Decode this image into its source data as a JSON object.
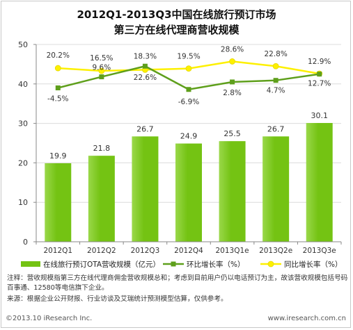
{
  "title_line1": "2012Q1-2013Q3中国在线旅行预订市场",
  "title_line2": "第三方在线代理商营收规模",
  "colors": {
    "bar": "#74c313",
    "bar_light": "#9ad84a",
    "qoq_line": "#5e9f1b",
    "yoy_line": "#fdf000",
    "yoy_marker": "#fdf000"
  },
  "chart_data": {
    "type": "bar",
    "categories": [
      "2012Q1",
      "2012Q2",
      "2012Q3",
      "2012Q4",
      "2013Q1e",
      "2013Q2e",
      "2013Q3e"
    ],
    "ylim": [
      0,
      50
    ],
    "yticks": [
      0,
      10,
      20,
      30,
      40,
      50
    ],
    "series": [
      {
        "name": "在线旅行预订OTA营收规模（亿元）",
        "kind": "bar",
        "values": [
          19.9,
          21.8,
          26.7,
          24.9,
          25.5,
          26.7,
          30.1
        ],
        "labels": [
          "19.9",
          "21.8",
          "26.7",
          "24.9",
          "25.5",
          "26.7",
          "30.1"
        ]
      },
      {
        "name": "环比增长率（%）",
        "kind": "line",
        "values": [
          -4.5,
          9.6,
          22.6,
          -6.9,
          2.8,
          4.7,
          12.7
        ],
        "labels": [
          "-4.5%",
          "9.6%",
          "22.6%",
          "-6.9%",
          "2.8%",
          "4.7%",
          "12.7%"
        ]
      },
      {
        "name": "同比增长率（%）",
        "kind": "line",
        "values": [
          20.2,
          16.5,
          18.3,
          19.5,
          28.6,
          22.8,
          12.9
        ],
        "labels": [
          "20.2%",
          "16.5%",
          "18.3%",
          "19.5%",
          "28.6%",
          "22.8%",
          "12.9%"
        ]
      }
    ],
    "line_plot_positions": {
      "qoq": [
        39.0,
        41.8,
        44.5,
        38.6,
        40.5,
        40.9,
        42.5
      ],
      "yoy": [
        44.0,
        43.3,
        43.6,
        43.9,
        45.7,
        44.5,
        42.6
      ]
    },
    "legend_position": "bottom"
  },
  "notes": {
    "line1": "注释：营收规模指第三方在线代理商佣金营收规模总和；考虑到目前用户仍以电话预订为主，故该营收规模包括号码百事通、12580等电信旗下企业。",
    "line2": "来源：根据企业公开财报、行业访谈及艾瑞统计预测模型估算，仅供参考。"
  },
  "footer": {
    "left": "©2013.10 iResearch Inc.",
    "right": "www.iresearch.com.cn"
  }
}
